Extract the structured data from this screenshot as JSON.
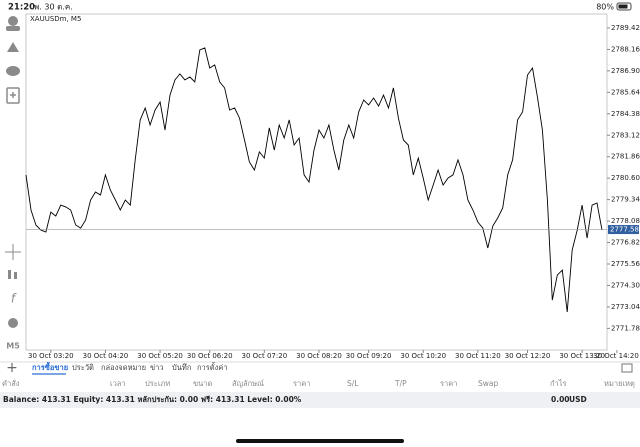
{
  "status_bar": {
    "time": "21:20",
    "date": "พ. 30 ต.ค.",
    "battery": "80%"
  },
  "chart_data": {
    "type": "line",
    "symbol": "XAUUSDm, M5",
    "color": "#000000",
    "values": [
      2780.79,
      2778.73,
      2777.85,
      2777.55,
      2777.44,
      2778.61,
      2778.38,
      2779.02,
      2778.91,
      2778.73,
      2777.85,
      2777.67,
      2778.14,
      2779.32,
      2779.79,
      2779.61,
      2780.79,
      2779.9,
      2779.32,
      2778.73,
      2779.32,
      2779.02,
      2781.67,
      2784.02,
      2784.72,
      2783.72,
      2784.6,
      2785.07,
      2783.43,
      2785.48,
      2786.37,
      2786.72,
      2786.37,
      2786.54,
      2786.25,
      2788.13,
      2788.25,
      2787.07,
      2787.25,
      2786.25,
      2785.9,
      2784.6,
      2784.72,
      2784.13,
      2782.84,
      2781.55,
      2781.08,
      2782.14,
      2781.78,
      2783.55,
      2782.25,
      2783.72,
      2782.96,
      2784.02,
      2782.55,
      2782.96,
      2780.79,
      2780.37,
      2782.25,
      2783.43,
      2782.96,
      2783.72,
      2782.25,
      2781.08,
      2782.84,
      2783.72,
      2782.96,
      2784.49,
      2785.19,
      2784.9,
      2785.31,
      2784.84,
      2785.48,
      2784.72,
      2785.9,
      2784.13,
      2782.84,
      2782.55,
      2780.79,
      2781.78,
      2780.61,
      2779.32,
      2780.2,
      2781.08,
      2780.2,
      2780.61,
      2780.79,
      2781.67,
      2780.79,
      2779.32,
      2778.73,
      2778.02,
      2777.67,
      2776.5,
      2777.79,
      2778.26,
      2778.85,
      2780.79,
      2781.67,
      2784.02,
      2784.49,
      2786.66,
      2787.07,
      2785.37,
      2783.43,
      2779.32,
      2773.44,
      2774.91,
      2775.2,
      2772.74,
      2776.38,
      2777.55,
      2779.02,
      2777.08,
      2779.02,
      2779.14,
      2777.55
    ],
    "xlim": [
      0,
      116
    ],
    "xticks": [
      {
        "value": 5,
        "label": "30 Oct 03:20"
      },
      {
        "value": 16,
        "label": "30 Oct 04:20"
      },
      {
        "value": 27,
        "label": "30 Oct 05:20"
      },
      {
        "value": 37,
        "label": "30 Oct 06:20"
      },
      {
        "value": 48,
        "label": "30 Oct 07:20"
      },
      {
        "value": 59,
        "label": "30 Oct 08:20"
      },
      {
        "value": 69,
        "label": "30 Oct 09:20"
      },
      {
        "value": 80,
        "label": "30 Oct 10:20"
      },
      {
        "value": 91,
        "label": "30 Oct 11:20"
      },
      {
        "value": 101,
        "label": "30 Oct 12:20"
      },
      {
        "value": 112,
        "label": "30 Oct 13:20"
      },
      {
        "value": 119,
        "label": "30 Oct 14:20"
      }
    ],
    "ylim": [
      2770.51,
      2790.24
    ],
    "yticks": [
      {
        "value": 2789.42,
        "label": "2789.420"
      },
      {
        "value": 2788.16,
        "label": "2788.160"
      },
      {
        "value": 2786.9,
        "label": "2786.900"
      },
      {
        "value": 2785.64,
        "label": "2785.640"
      },
      {
        "value": 2784.38,
        "label": "2784.380"
      },
      {
        "value": 2783.12,
        "label": "2783.120"
      },
      {
        "value": 2781.86,
        "label": "2781.860"
      },
      {
        "value": 2780.6,
        "label": "2780.600"
      },
      {
        "value": 2779.34,
        "label": "2779.340"
      },
      {
        "value": 2778.08,
        "label": "2778.080"
      },
      {
        "value": 2776.82,
        "label": "2776.820"
      },
      {
        "value": 2775.56,
        "label": "2775.560"
      },
      {
        "value": 2774.3,
        "label": "2774.300"
      },
      {
        "value": 2773.04,
        "label": "2773.040"
      },
      {
        "value": 2771.78,
        "label": "2771.780"
      }
    ],
    "current_price": 2777.583
  },
  "timeframe": "M5",
  "tabs": [
    "การซื้อขาย",
    "ประวัติ",
    "กล่องจดหมาย",
    "ข่าว",
    "บันทึก",
    "การตั้งค่า"
  ],
  "columns": [
    "คำสั่ง",
    "เวลา",
    "ประเภท",
    "ขนาด",
    "สัญลักษณ์",
    "ราคา",
    "S/L",
    "T/P",
    "ราคา",
    "Swap",
    "กำไร",
    "หมายเหตุ"
  ],
  "balance": {
    "text": "Balance: 413.31 Equity: 413.31 หลักประกัน: 0.00 ฟรี: 413.31 Level: 0.00%",
    "profit": "0.00",
    "currency": "USD"
  }
}
